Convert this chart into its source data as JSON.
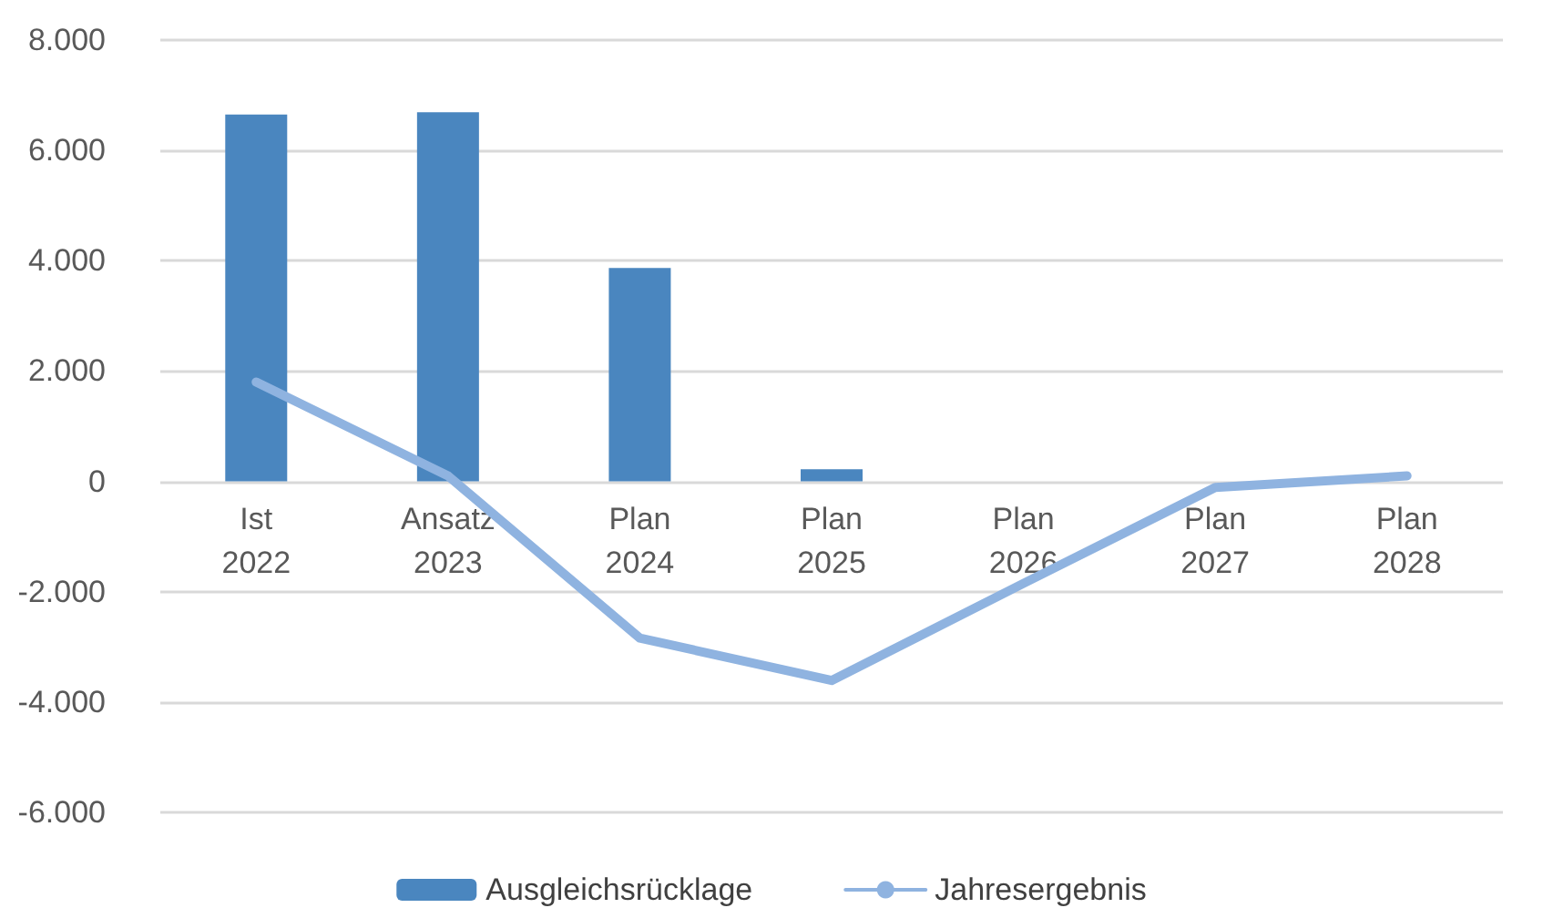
{
  "chart_data": {
    "type": "bar",
    "categories": [
      "Ist\n2022",
      "Ansatz\n2023",
      "Plan\n2024",
      "Plan\n2025",
      "Plan\n2026",
      "Plan\n2027",
      "Plan\n2028"
    ],
    "series": [
      {
        "name": "Ausgleichsrücklage",
        "color": "#4a86bf",
        "values": [
          6650,
          6690,
          3870,
          220,
          null,
          null,
          null
        ]
      },
      {
        "name": "Jahresergebnis",
        "type": "line",
        "color": "#8fb3e0",
        "values": [
          1800,
          100,
          -2840,
          -3610,
          -1850,
          -110,
          100
        ]
      }
    ],
    "ylim": [
      -6000,
      8000
    ],
    "yticks": [
      {
        "value": -6000,
        "label": "-6.000"
      },
      {
        "value": -4000,
        "label": "-4.000"
      },
      {
        "value": -2000,
        "label": "-2.000"
      },
      0,
      {
        "value": 2000,
        "label": "2.000"
      },
      {
        "value": 4000,
        "label": "4.000"
      },
      {
        "value": 6000,
        "label": "6.000"
      },
      {
        "value": 8000,
        "label": "8.000"
      }
    ],
    "grid": "y",
    "legend": "bottom",
    "marker": "none"
  }
}
